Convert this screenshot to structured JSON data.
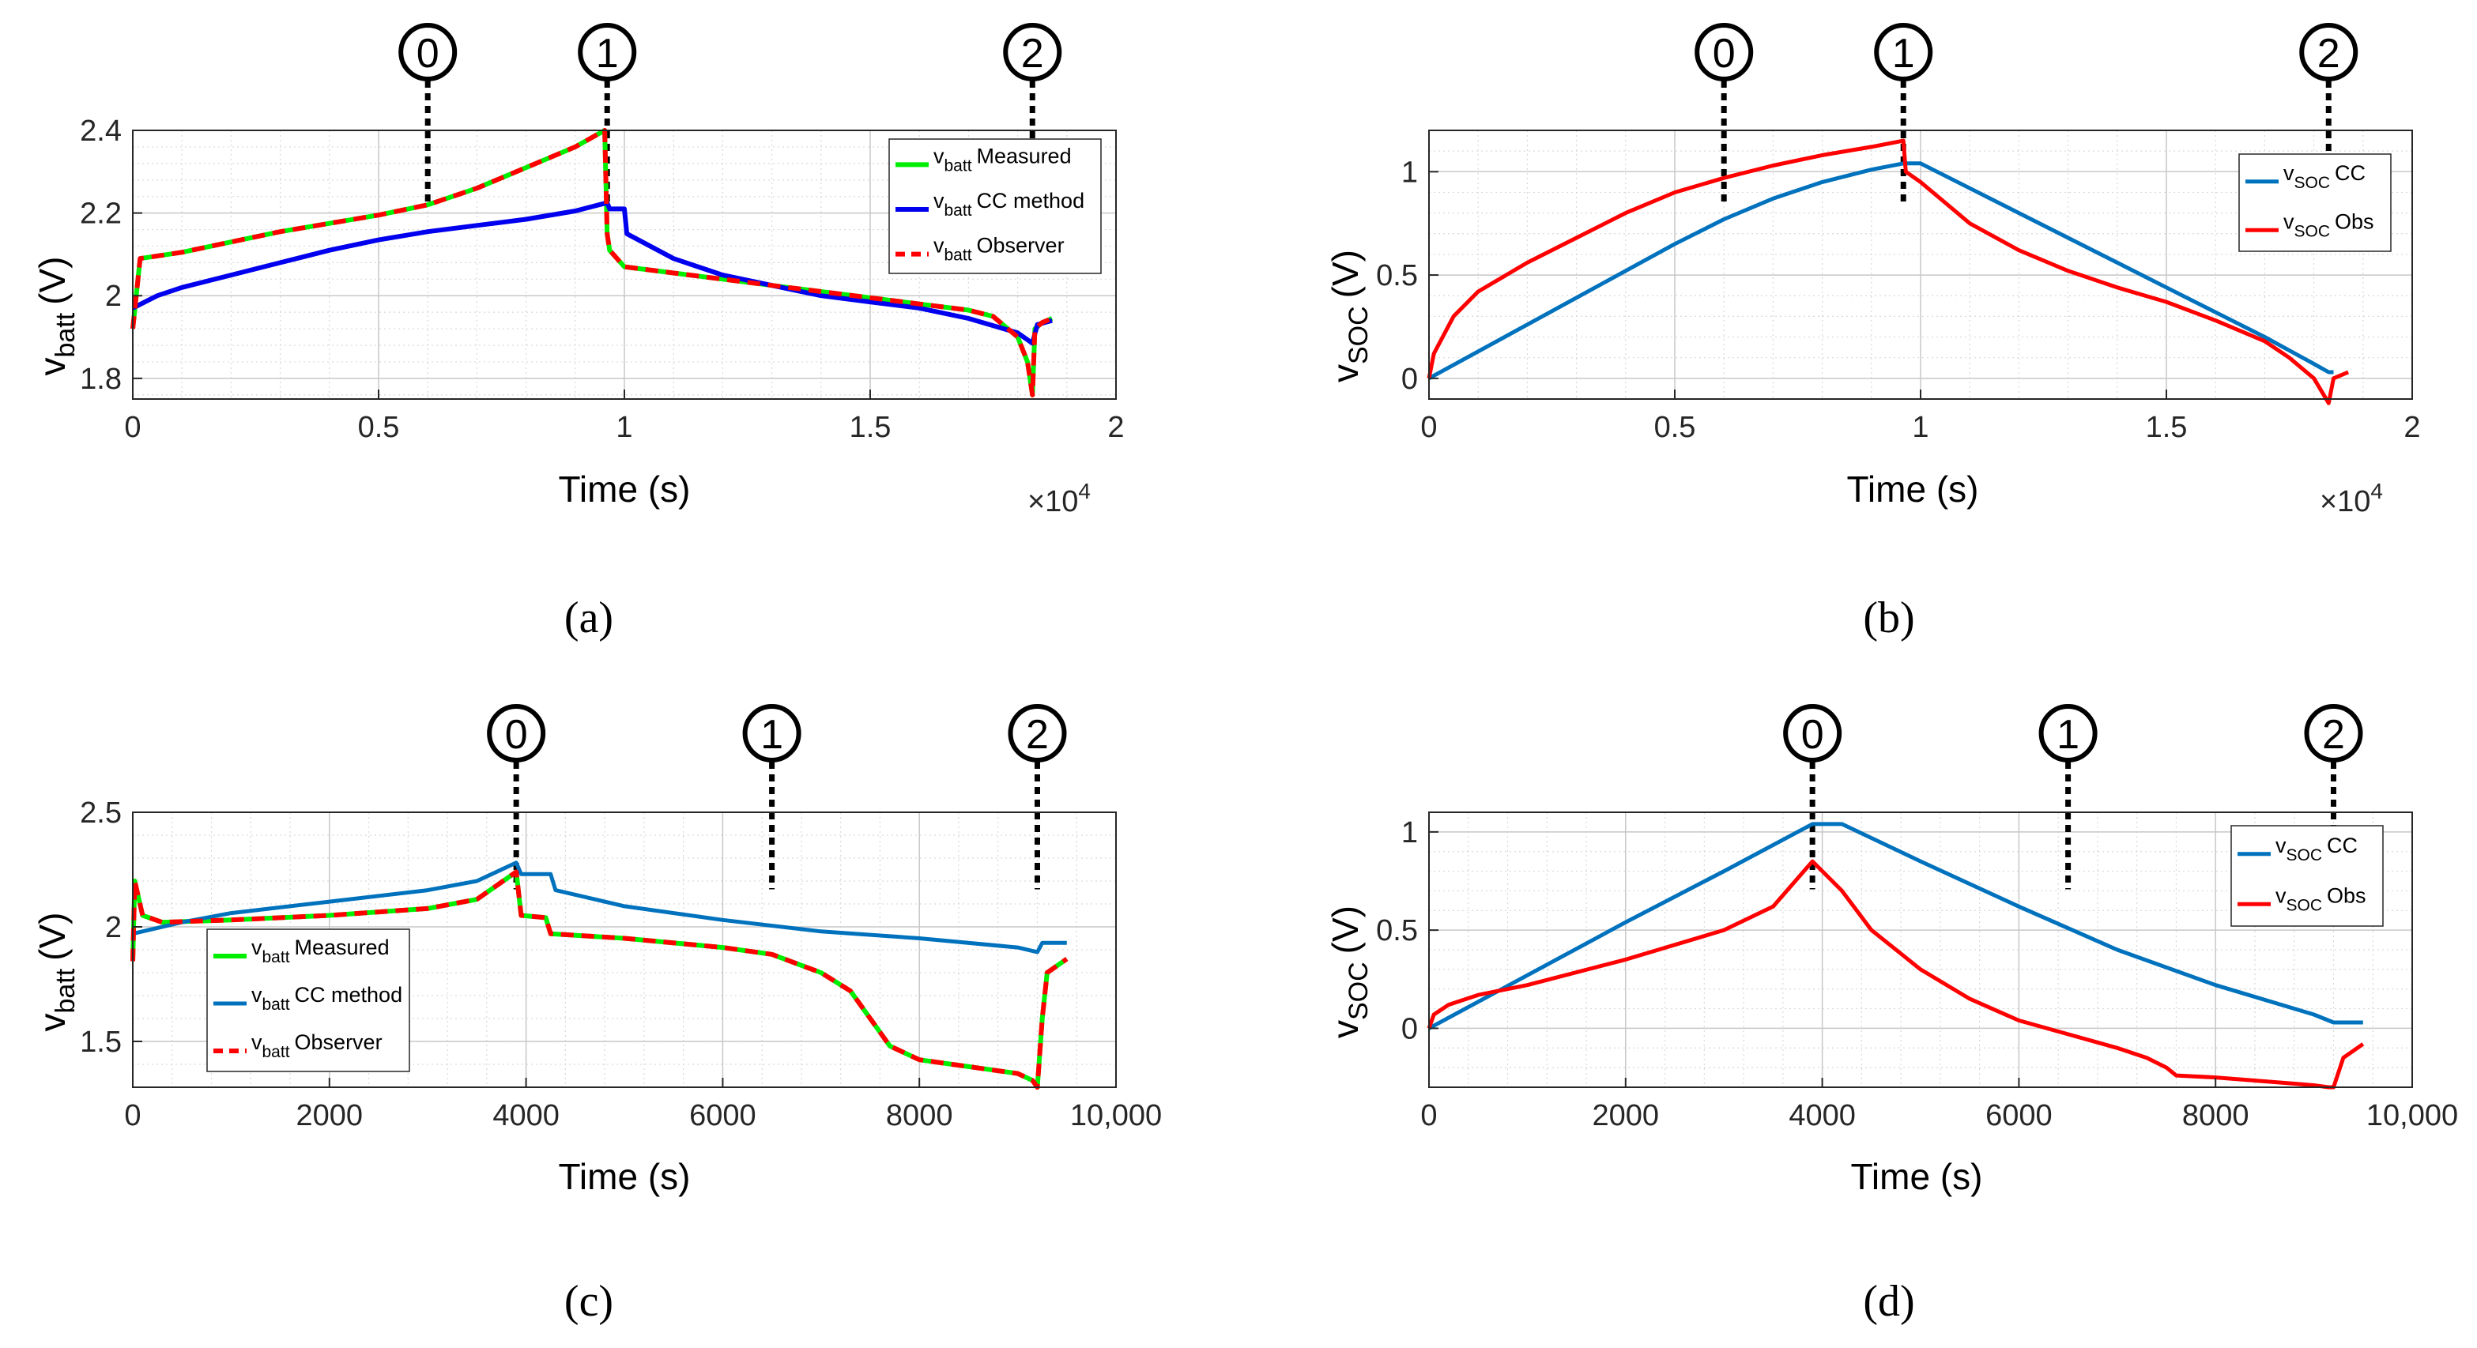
{
  "chart_data": [
    {
      "id": "a",
      "type": "line",
      "caption": "(a)",
      "xlabel": "Time (s)",
      "ylabel_main": "v",
      "ylabel_sub": "batt",
      "ylabel_unit": "(V)",
      "x_exponent": "×10",
      "x_exponent_power": "4",
      "xlim": [
        0,
        20000
      ],
      "ylim": [
        1.75,
        2.4
      ],
      "xticks": [
        0,
        5000,
        10000,
        15000,
        20000
      ],
      "xtick_labels": [
        "0",
        "0.5",
        "1",
        "1.5",
        "2"
      ],
      "yticks": [
        1.8,
        2.0,
        2.2,
        2.4
      ],
      "ytick_labels": [
        "1.8",
        "2",
        "2.2",
        "2.4"
      ],
      "grid": true,
      "legend_position": "top-right",
      "markers": [
        {
          "label": "0",
          "x": 6000
        },
        {
          "label": "1",
          "x": 9650
        },
        {
          "label": "2",
          "x": 18300
        }
      ],
      "series": [
        {
          "name": "Measured",
          "legend_main": "v",
          "legend_sub": "batt",
          "legend_text": "Measured",
          "color": "#00ee00",
          "dash": false,
          "width": 6,
          "x": [
            0,
            150,
            1000,
            2000,
            3000,
            4000,
            5000,
            6000,
            7000,
            8000,
            9000,
            9600,
            9650,
            9700,
            10000,
            11000,
            12000,
            13000,
            14000,
            15000,
            16000,
            17000,
            17500,
            18000,
            18200,
            18300,
            18350,
            18500,
            18700
          ],
          "y": [
            1.92,
            2.09,
            2.105,
            2.13,
            2.155,
            2.175,
            2.195,
            2.22,
            2.26,
            2.31,
            2.36,
            2.4,
            2.15,
            2.11,
            2.07,
            2.055,
            2.04,
            2.025,
            2.01,
            1.995,
            1.98,
            1.965,
            1.95,
            1.9,
            1.84,
            1.76,
            1.92,
            1.935,
            1.945
          ]
        },
        {
          "name": "CC method",
          "legend_main": "v",
          "legend_sub": "batt",
          "legend_text": "CC method",
          "color": "#0000ee",
          "dash": false,
          "width": 6,
          "x": [
            0,
            500,
            1000,
            2000,
            3000,
            4000,
            5000,
            6000,
            7000,
            8000,
            9000,
            9650,
            9700,
            10000,
            10050,
            11000,
            12000,
            13000,
            14000,
            15000,
            16000,
            17000,
            18000,
            18300,
            18400,
            18700
          ],
          "y": [
            1.97,
            2.0,
            2.02,
            2.05,
            2.08,
            2.11,
            2.135,
            2.155,
            2.17,
            2.185,
            2.205,
            2.225,
            2.21,
            2.21,
            2.15,
            2.09,
            2.05,
            2.025,
            2.0,
            1.985,
            1.97,
            1.945,
            1.91,
            1.885,
            1.93,
            1.94
          ]
        },
        {
          "name": "Observer",
          "legend_main": "v",
          "legend_sub": "batt",
          "legend_text": "Observer",
          "color": "#ff0000",
          "dash": true,
          "width": 6,
          "x": [
            0,
            150,
            1000,
            2000,
            3000,
            4000,
            5000,
            6000,
            7000,
            8000,
            9000,
            9600,
            9650,
            9700,
            10000,
            11000,
            12000,
            13000,
            14000,
            15000,
            16000,
            17000,
            17500,
            18000,
            18200,
            18300,
            18350,
            18500,
            18700
          ],
          "y": [
            1.92,
            2.09,
            2.105,
            2.13,
            2.155,
            2.175,
            2.195,
            2.22,
            2.26,
            2.31,
            2.36,
            2.4,
            2.15,
            2.11,
            2.07,
            2.055,
            2.04,
            2.025,
            2.01,
            1.995,
            1.98,
            1.965,
            1.95,
            1.9,
            1.84,
            1.76,
            1.92,
            1.935,
            1.945
          ]
        }
      ]
    },
    {
      "id": "b",
      "type": "line",
      "caption": "(b)",
      "xlabel": "Time (s)",
      "ylabel_main": "v",
      "ylabel_sub": "SOC",
      "ylabel_unit": "(V)",
      "x_exponent": "×10",
      "x_exponent_power": "4",
      "xlim": [
        0,
        20000
      ],
      "ylim": [
        -0.1,
        1.2
      ],
      "xticks": [
        0,
        5000,
        10000,
        15000,
        20000
      ],
      "xtick_labels": [
        "0",
        "0.5",
        "1",
        "1.5",
        "2"
      ],
      "yticks": [
        0,
        0.5,
        1
      ],
      "ytick_labels": [
        "0",
        "0.5",
        "1"
      ],
      "grid": true,
      "legend_position": "top-right",
      "markers": [
        {
          "label": "0",
          "x": 6000
        },
        {
          "label": "1",
          "x": 9650
        },
        {
          "label": "2",
          "x": 18300
        }
      ],
      "series": [
        {
          "name": "CC",
          "legend_main": "v",
          "legend_sub": "SOC",
          "legend_text": "CC",
          "color": "#0072bd",
          "dash": false,
          "width": 5,
          "x": [
            0,
            1000,
            2000,
            3000,
            4000,
            5000,
            6000,
            7000,
            8000,
            9000,
            9650,
            10000,
            11000,
            12000,
            13000,
            14000,
            15000,
            16000,
            17000,
            18000,
            18300,
            18400
          ],
          "y": [
            0,
            0.13,
            0.26,
            0.39,
            0.52,
            0.65,
            0.77,
            0.87,
            0.95,
            1.01,
            1.04,
            1.04,
            0.92,
            0.8,
            0.68,
            0.56,
            0.44,
            0.32,
            0.2,
            0.07,
            0.03,
            0.03
          ]
        },
        {
          "name": "Obs",
          "legend_main": "v",
          "legend_sub": "SOC",
          "legend_text": "Obs",
          "color": "#ff0000",
          "dash": false,
          "width": 5,
          "x": [
            0,
            100,
            500,
            1000,
            2000,
            3000,
            4000,
            5000,
            6000,
            7000,
            8000,
            9000,
            9650,
            9700,
            10000,
            10500,
            11000,
            12000,
            13000,
            14000,
            15000,
            16000,
            17000,
            17500,
            18000,
            18300,
            18400,
            18700
          ],
          "y": [
            0,
            0.12,
            0.3,
            0.42,
            0.56,
            0.68,
            0.8,
            0.9,
            0.97,
            1.03,
            1.08,
            1.12,
            1.15,
            1.0,
            0.95,
            0.85,
            0.75,
            0.62,
            0.52,
            0.44,
            0.37,
            0.28,
            0.18,
            0.1,
            0.0,
            -0.12,
            0.0,
            0.03
          ]
        }
      ]
    },
    {
      "id": "c",
      "type": "line",
      "caption": "(c)",
      "xlabel": "Time (s)",
      "ylabel_main": "v",
      "ylabel_sub": "batt",
      "ylabel_unit": "(V)",
      "xlim": [
        0,
        10000
      ],
      "ylim": [
        1.3,
        2.5
      ],
      "xticks": [
        0,
        2000,
        4000,
        6000,
        8000,
        10000
      ],
      "xtick_labels": [
        "0",
        "2000",
        "4000",
        "6000",
        "8000",
        "10,000"
      ],
      "yticks": [
        1.5,
        2.0,
        2.5
      ],
      "ytick_labels": [
        "1.5",
        "2",
        "2.5"
      ],
      "grid": true,
      "legend_position": "bottom-left",
      "markers": [
        {
          "label": "0",
          "x": 3900
        },
        {
          "label": "1",
          "x": 6500
        },
        {
          "label": "2",
          "x": 9200
        }
      ],
      "series": [
        {
          "name": "Measured",
          "legend_main": "v",
          "legend_sub": "batt",
          "legend_text": "Measured",
          "color": "#00ee00",
          "dash": false,
          "width": 6,
          "x": [
            0,
            20,
            100,
            300,
            1000,
            2000,
            3000,
            3500,
            3900,
            3950,
            4200,
            4250,
            5000,
            6000,
            6500,
            7000,
            7300,
            7500,
            7700,
            8000,
            8500,
            9000,
            9150,
            9200,
            9250,
            9300,
            9500
          ],
          "y": [
            1.85,
            2.2,
            2.05,
            2.02,
            2.03,
            2.05,
            2.08,
            2.12,
            2.24,
            2.05,
            2.04,
            1.97,
            1.95,
            1.91,
            1.88,
            1.8,
            1.72,
            1.6,
            1.48,
            1.42,
            1.39,
            1.36,
            1.33,
            1.3,
            1.6,
            1.8,
            1.86
          ]
        },
        {
          "name": "CC method",
          "legend_main": "v",
          "legend_sub": "batt",
          "legend_text": "CC method",
          "color": "#0072bd",
          "dash": false,
          "width": 5,
          "x": [
            0,
            500,
            1000,
            2000,
            3000,
            3500,
            3900,
            3950,
            4250,
            4300,
            5000,
            6000,
            7000,
            8000,
            9000,
            9200,
            9250,
            9500
          ],
          "y": [
            1.97,
            2.02,
            2.06,
            2.11,
            2.16,
            2.2,
            2.28,
            2.23,
            2.23,
            2.16,
            2.09,
            2.03,
            1.98,
            1.95,
            1.91,
            1.89,
            1.93,
            1.93
          ]
        },
        {
          "name": "Observer",
          "legend_main": "v",
          "legend_sub": "batt",
          "legend_text": "Observer",
          "color": "#ff0000",
          "dash": true,
          "width": 6,
          "x": [
            0,
            20,
            100,
            300,
            1000,
            2000,
            3000,
            3500,
            3900,
            3950,
            4200,
            4250,
            5000,
            6000,
            6500,
            7000,
            7300,
            7500,
            7700,
            8000,
            8500,
            9000,
            9150,
            9200,
            9250,
            9300,
            9500
          ],
          "y": [
            1.85,
            2.2,
            2.05,
            2.02,
            2.03,
            2.05,
            2.08,
            2.12,
            2.24,
            2.05,
            2.04,
            1.97,
            1.95,
            1.91,
            1.88,
            1.8,
            1.72,
            1.6,
            1.48,
            1.42,
            1.39,
            1.36,
            1.33,
            1.3,
            1.6,
            1.8,
            1.86
          ]
        }
      ]
    },
    {
      "id": "d",
      "type": "line",
      "caption": "(d)",
      "xlabel": "Time (s)",
      "ylabel_main": "v",
      "ylabel_sub": "SOC",
      "ylabel_unit": "(V)",
      "xlim": [
        0,
        10000
      ],
      "ylim": [
        -0.3,
        1.1
      ],
      "xticks": [
        0,
        2000,
        4000,
        6000,
        8000,
        10000
      ],
      "xtick_labels": [
        "0",
        "2000",
        "4000",
        "6000",
        "8000",
        "10,000"
      ],
      "yticks": [
        0,
        0.5,
        1
      ],
      "ytick_labels": [
        "0",
        "0.5",
        "1"
      ],
      "grid": true,
      "legend_position": "right",
      "markers": [
        {
          "label": "0",
          "x": 3900
        },
        {
          "label": "1",
          "x": 6500
        },
        {
          "label": "2",
          "x": 9200
        }
      ],
      "series": [
        {
          "name": "CC",
          "legend_main": "v",
          "legend_sub": "SOC",
          "legend_text": "CC",
          "color": "#0072bd",
          "dash": false,
          "width": 5,
          "x": [
            0,
            1000,
            2000,
            3000,
            3900,
            4200,
            5000,
            6000,
            7000,
            8000,
            9000,
            9200,
            9500
          ],
          "y": [
            0,
            0.27,
            0.54,
            0.8,
            1.04,
            1.04,
            0.85,
            0.62,
            0.4,
            0.22,
            0.07,
            0.03,
            0.03
          ]
        },
        {
          "name": "Obs",
          "legend_main": "v",
          "legend_sub": "SOC",
          "legend_text": "Obs",
          "color": "#ff0000",
          "dash": false,
          "width": 5,
          "x": [
            0,
            50,
            200,
            500,
            1000,
            2000,
            3000,
            3500,
            3900,
            4200,
            4500,
            5000,
            5500,
            6000,
            6500,
            7000,
            7300,
            7500,
            7600,
            8000,
            8500,
            9000,
            9150,
            9200,
            9300,
            9500
          ],
          "y": [
            0,
            0.07,
            0.12,
            0.17,
            0.22,
            0.35,
            0.5,
            0.62,
            0.85,
            0.7,
            0.5,
            0.3,
            0.15,
            0.04,
            -0.03,
            -0.1,
            -0.15,
            -0.2,
            -0.24,
            -0.25,
            -0.27,
            -0.29,
            -0.3,
            -0.3,
            -0.15,
            -0.08
          ]
        }
      ]
    }
  ]
}
